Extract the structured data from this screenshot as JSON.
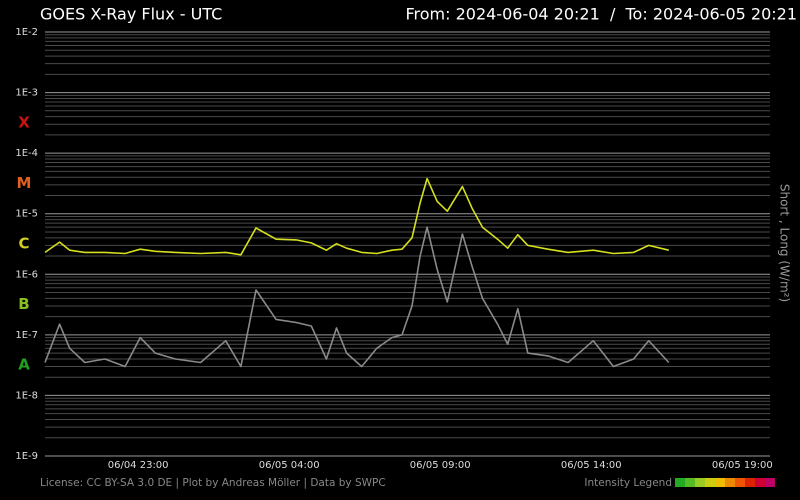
{
  "chart_data": {
    "type": "line",
    "title": "GOES X-Ray Flux - UTC",
    "subtitle": "From: 2024-06-04 20:21  /  To: 2024-06-05 20:21",
    "y_axis_label": "Short , Long (W/m²)",
    "footer": "License: CC BY-SA 3.0 DE | Plot by Andreas Möller | Data by SWPC",
    "intensity_legend": {
      "label": "Intensity Legend",
      "colors": [
        "#22aa22",
        "#55bb22",
        "#99cc22",
        "#cccc11",
        "#eebb00",
        "#ee8800",
        "#ee5500",
        "#dd2200",
        "#cc0033",
        "#bb0066"
      ]
    },
    "log_scale": true,
    "grid": true,
    "ylim": [
      1e-09,
      0.01
    ],
    "yticks": [
      {
        "value": 1e-09,
        "label": "1E-9"
      },
      {
        "value": 1e-08,
        "label": "1E-8"
      },
      {
        "value": 1e-07,
        "label": "1E-7"
      },
      {
        "value": 1e-06,
        "label": "1E-6"
      },
      {
        "value": 1e-05,
        "label": "1E-5"
      },
      {
        "value": 0.0001,
        "label": "1E-4"
      },
      {
        "value": 0.001,
        "label": "1E-3"
      },
      {
        "value": 0.01,
        "label": "1E-2"
      }
    ],
    "classes": [
      {
        "label": "X",
        "color": "#cc1111"
      },
      {
        "label": "M",
        "color": "#e06020"
      },
      {
        "label": "C",
        "color": "#d0d020"
      },
      {
        "label": "B",
        "color": "#88c020"
      },
      {
        "label": "A",
        "color": "#20a020"
      }
    ],
    "xlim": [
      "06/04 19:55",
      "06/05 19:55"
    ],
    "xticks": [
      "06/04 23:00",
      "06/05 04:00",
      "06/05 09:00",
      "06/05 14:00",
      "06/05 19:00"
    ],
    "x": [
      "06/04 19:55",
      "06/04 20:24",
      "06/04 20:44",
      "06/04 21:14",
      "06/04 21:54",
      "06/04 22:34",
      "06/04 23:04",
      "06/04 23:34",
      "06/05 00:14",
      "06/05 01:04",
      "06/05 01:54",
      "06/05 02:24",
      "06/05 02:54",
      "06/05 03:34",
      "06/05 04:14",
      "06/05 04:44",
      "06/05 05:14",
      "06/05 05:34",
      "06/05 05:54",
      "06/05 06:24",
      "06/05 06:54",
      "06/05 07:24",
      "06/05 07:44",
      "06/05 08:04",
      "06/05 08:20",
      "06/05 08:34",
      "06/05 08:54",
      "06/05 09:14",
      "06/05 09:44",
      "06/05 10:04",
      "06/05 10:24",
      "06/05 10:54",
      "06/05 11:14",
      "06/05 11:34",
      "06/05 11:54",
      "06/05 12:34",
      "06/05 13:14",
      "06/05 14:04",
      "06/05 14:44",
      "06/05 15:24",
      "06/05 15:54",
      "06/05 16:34"
    ],
    "series": [
      {
        "name": "Long",
        "color": "#d6e01e",
        "values": [
          2.3e-06,
          3.4e-06,
          2.5e-06,
          2.3e-06,
          2.3e-06,
          2.2e-06,
          2.6e-06,
          2.4e-06,
          2.3e-06,
          2.2e-06,
          2.3e-06,
          2.1e-06,
          5.8e-06,
          3.8e-06,
          3.7e-06,
          3.3e-06,
          2.5e-06,
          3.2e-06,
          2.7e-06,
          2.3e-06,
          2.2e-06,
          2.5e-06,
          2.6e-06,
          4e-06,
          1.5e-05,
          3.8e-05,
          1.6e-05,
          1.1e-05,
          2.8e-05,
          1.2e-05,
          6e-06,
          3.8e-06,
          2.7e-06,
          4.5e-06,
          3e-06,
          2.6e-06,
          2.3e-06,
          2.5e-06,
          2.2e-06,
          2.3e-06,
          3e-06,
          2.5e-06
        ]
      },
      {
        "name": "Short",
        "color": "#8a8a8a",
        "values": [
          3.5e-08,
          1.5e-07,
          6e-08,
          3.5e-08,
          4e-08,
          3e-08,
          9e-08,
          5e-08,
          4e-08,
          3.5e-08,
          8e-08,
          3e-08,
          5.5e-07,
          1.8e-07,
          1.6e-07,
          1.4e-07,
          4e-08,
          1.3e-07,
          5e-08,
          3e-08,
          6e-08,
          9e-08,
          1e-07,
          3e-07,
          2e-06,
          6e-06,
          1.2e-06,
          3.5e-07,
          4.6e-06,
          1.3e-06,
          4e-07,
          1.5e-07,
          7e-08,
          2.7e-07,
          5e-08,
          4.5e-08,
          3.5e-08,
          8e-08,
          3e-08,
          4e-08,
          8e-08,
          3.5e-08
        ]
      }
    ]
  }
}
